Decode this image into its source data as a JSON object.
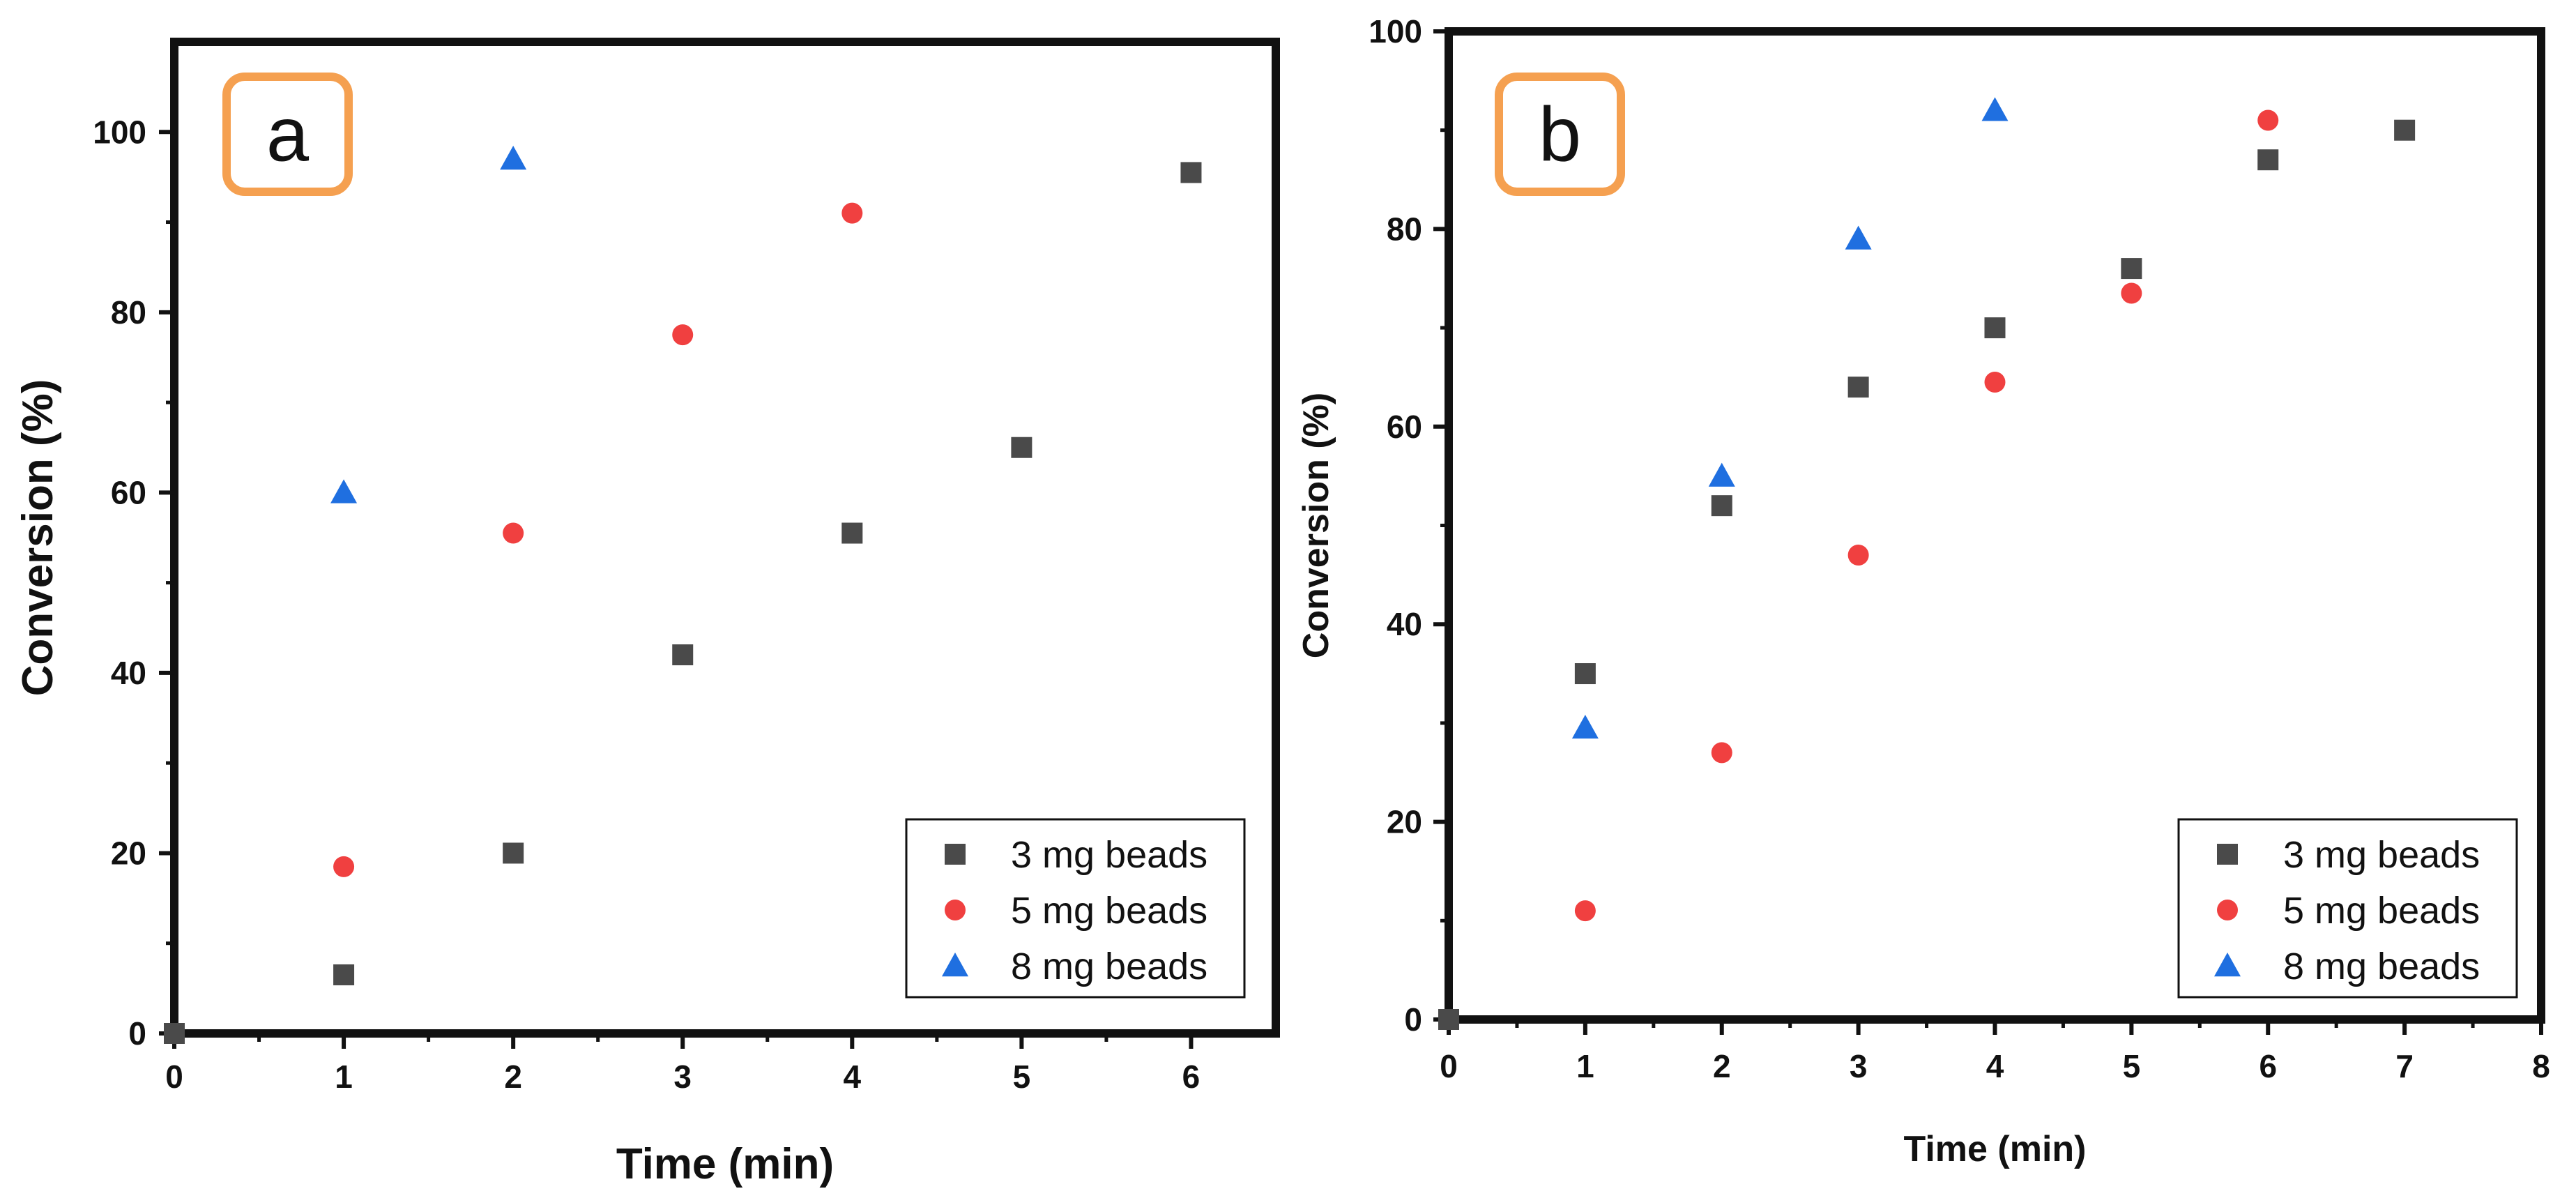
{
  "chart_data": [
    {
      "panel_label": "a",
      "type": "scatter",
      "xlabel": "Time (min)",
      "ylabel": "Conversion (%)",
      "xlim": [
        0,
        6.5
      ],
      "ylim": [
        0,
        110
      ],
      "x_ticks": [
        0,
        1,
        2,
        3,
        4,
        5,
        6
      ],
      "y_ticks": [
        0,
        20,
        40,
        60,
        80,
        100
      ],
      "legend_position": "bottom-right",
      "series": [
        {
          "name": "3 mg beads",
          "marker": "square",
          "color": "#4a4a4a",
          "points": [
            [
              0,
              0
            ],
            [
              1,
              6.5
            ],
            [
              2,
              20
            ],
            [
              3,
              42
            ],
            [
              4,
              55.5
            ],
            [
              5,
              65
            ],
            [
              6,
              95.5
            ]
          ]
        },
        {
          "name": "5 mg beads",
          "marker": "circle",
          "color": "#f04040",
          "points": [
            [
              1,
              18.5
            ],
            [
              2,
              55.5
            ],
            [
              3,
              77.5
            ],
            [
              4,
              91
            ]
          ]
        },
        {
          "name": "8  mg beads",
          "marker": "triangle",
          "color": "#1f6fe0",
          "points": [
            [
              1,
              60
            ],
            [
              2,
              97
            ]
          ]
        }
      ]
    },
    {
      "panel_label": "b",
      "type": "scatter",
      "xlabel": "Time (min)",
      "ylabel": "Conversion (%)",
      "xlim": [
        0,
        8
      ],
      "ylim": [
        0,
        100
      ],
      "x_ticks": [
        0,
        1,
        2,
        3,
        4,
        5,
        6,
        7,
        8
      ],
      "y_ticks": [
        0,
        20,
        40,
        60,
        80,
        100
      ],
      "legend_position": "bottom-right",
      "series": [
        {
          "name": "3 mg beads",
          "marker": "square",
          "color": "#4a4a4a",
          "points": [
            [
              0,
              0
            ],
            [
              1,
              35
            ],
            [
              2,
              52
            ],
            [
              3,
              64
            ],
            [
              4,
              70
            ],
            [
              5,
              76
            ],
            [
              6,
              87
            ],
            [
              7,
              90
            ]
          ]
        },
        {
          "name": "5 mg beads",
          "marker": "circle",
          "color": "#f04040",
          "points": [
            [
              1,
              11
            ],
            [
              2,
              27
            ],
            [
              3,
              47
            ],
            [
              4,
              64.5
            ],
            [
              5,
              73.5
            ],
            [
              6,
              91
            ]
          ]
        },
        {
          "name": "8  mg beads",
          "marker": "triangle",
          "color": "#1f6fe0",
          "points": [
            [
              1,
              29.5
            ],
            [
              2,
              55
            ],
            [
              3,
              79
            ],
            [
              4,
              92
            ]
          ]
        }
      ]
    }
  ],
  "colors": {
    "badge_border": "#f5a050",
    "axes": "#111111"
  }
}
